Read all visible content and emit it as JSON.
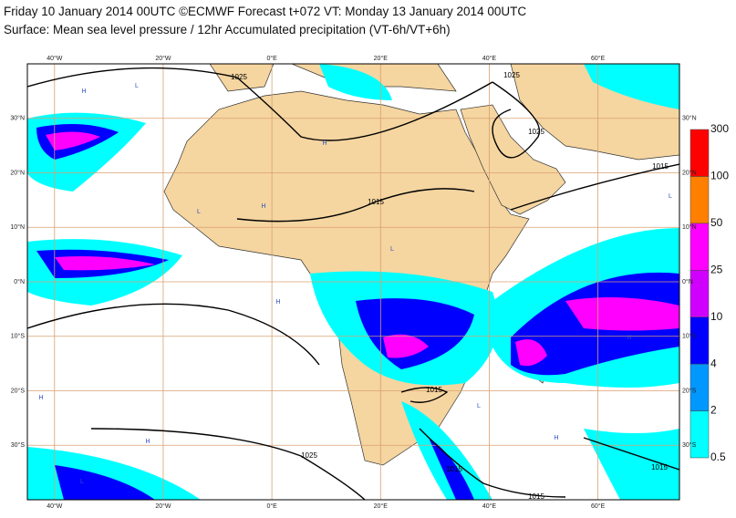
{
  "title": "Friday 10 January 2014 00UTC ©ECMWF Forecast t+072 VT: Monday 13 January 2014 00UTC",
  "subtitle": "Surface: Mean sea level pressure / 12hr Accumulated precipitation (VT-6h/VT+6h)",
  "map": {
    "xlim": [
      -45,
      75
    ],
    "ylim": [
      -40,
      40
    ],
    "xticks": [
      {
        "value": -40,
        "label": "40°W"
      },
      {
        "value": -20,
        "label": "20°W"
      },
      {
        "value": 0,
        "label": "0°E"
      },
      {
        "value": 20,
        "label": "20°E"
      },
      {
        "value": 40,
        "label": "40°E"
      },
      {
        "value": 60,
        "label": "60°E"
      }
    ],
    "yticks": [
      {
        "value": 30,
        "label": "30°N"
      },
      {
        "value": 20,
        "label": "20°N"
      },
      {
        "value": 10,
        "label": "10°N"
      },
      {
        "value": 0,
        "label": "0°N"
      },
      {
        "value": -10,
        "label": "10°S"
      },
      {
        "value": -20,
        "label": "20°S"
      },
      {
        "value": -30,
        "label": "30°S"
      }
    ],
    "grid": true,
    "grid_color": "#d9a070"
  },
  "colorbar": {
    "levels": [
      0.5,
      2,
      4,
      10,
      25,
      50,
      100,
      300
    ],
    "colors": [
      "#00ffff",
      "#0098ff",
      "#0000ff",
      "#d000ff",
      "#ff00ff",
      "#ff8000",
      "#ff0000"
    ]
  },
  "contour_labels": [
    "1025",
    "1025",
    "1025",
    "1015",
    "1015",
    "1015",
    "1025",
    "1015",
    "1015",
    "1015"
  ],
  "pressure_centers": [
    "H",
    "L",
    "H",
    "L",
    "H",
    "L",
    "H",
    "H",
    "L",
    "H",
    "L",
    "H",
    "H",
    "L"
  ]
}
